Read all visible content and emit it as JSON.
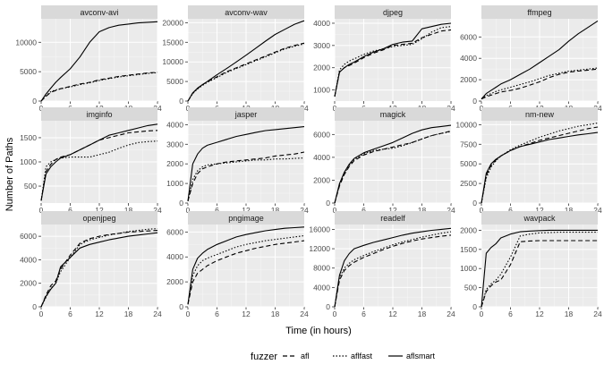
{
  "chart_data": {
    "type": "line",
    "xlabel": "Time (in hours)",
    "ylabel": "Number of Paths",
    "xlim": [
      0,
      24
    ],
    "xticks": [
      0,
      6,
      12,
      18,
      24
    ],
    "x": [
      0,
      1,
      2,
      3,
      4,
      6,
      8,
      10,
      12,
      14,
      16,
      18,
      20,
      22,
      24
    ],
    "grid": true,
    "legend": {
      "title": "fuzzer",
      "position": "bottom",
      "entries": [
        {
          "name": "afl",
          "dash": "5,3"
        },
        {
          "name": "aflfast",
          "dash": "1.5,2"
        },
        {
          "name": "aflsmart",
          "dash": ""
        }
      ]
    },
    "panels": [
      {
        "title": "avconv-avi",
        "ylim": [
          0,
          14000
        ],
        "yticks": [
          0,
          5000,
          10000
        ],
        "series": [
          {
            "name": "afl",
            "values": [
              0,
              800,
              1500,
              1800,
              2100,
              2500,
              2900,
              3200,
              3600,
              3900,
              4200,
              4400,
              4600,
              4800,
              4900
            ]
          },
          {
            "name": "aflfast",
            "values": [
              0,
              900,
              1600,
              1900,
              2100,
              2400,
              2800,
              3100,
              3500,
              3800,
              4100,
              4300,
              4500,
              4700,
              4850
            ]
          },
          {
            "name": "aflsmart",
            "values": [
              0,
              1200,
              2200,
              3200,
              4000,
              5500,
              7500,
              10000,
              11800,
              12500,
              12900,
              13100,
              13300,
              13400,
              13500
            ]
          }
        ]
      },
      {
        "title": "avconv-wav",
        "ylim": [
          0,
          21000
        ],
        "yticks": [
          0,
          5000,
          10000,
          15000,
          20000
        ],
        "series": [
          {
            "name": "afl",
            "values": [
              0,
              2000,
              3200,
              4200,
              4900,
              6200,
              7500,
              8500,
              9500,
              10500,
              11500,
              12500,
              13500,
              14200,
              14800
            ]
          },
          {
            "name": "aflfast",
            "values": [
              0,
              1900,
              3100,
              4000,
              4800,
              6000,
              7300,
              8300,
              9300,
              10300,
              11300,
              12300,
              13300,
              14000,
              14600
            ]
          },
          {
            "name": "aflsmart",
            "values": [
              0,
              2100,
              3300,
              4200,
              5000,
              6700,
              8300,
              10000,
              11700,
              13500,
              15300,
              17000,
              18300,
              19600,
              20500
            ]
          }
        ]
      },
      {
        "title": "djpeg",
        "ylim": [
          500,
          4200
        ],
        "yticks": [
          1000,
          2000,
          3000,
          4000
        ],
        "series": [
          {
            "name": "afl",
            "values": [
              700,
              1800,
              2000,
              2100,
              2200,
              2450,
              2650,
              2800,
              3000,
              3050,
              3100,
              3350,
              3500,
              3650,
              3700
            ]
          },
          {
            "name": "aflfast",
            "values": [
              700,
              1900,
              2150,
              2300,
              2400,
              2600,
              2750,
              2850,
              2950,
              3000,
              3050,
              3300,
              3600,
              3800,
              3850
            ]
          },
          {
            "name": "aflsmart",
            "values": [
              700,
              1800,
              2000,
              2150,
              2250,
              2500,
              2700,
              2850,
              3050,
              3150,
              3200,
              3750,
              3850,
              3950,
              4000
            ]
          }
        ]
      },
      {
        "title": "ffmpeg",
        "ylim": [
          0,
          7700
        ],
        "yticks": [
          0,
          2000,
          4000,
          6000
        ],
        "series": [
          {
            "name": "afl",
            "values": [
              200,
              400,
              550,
              700,
              850,
              1000,
              1200,
              1500,
              1800,
              2200,
              2500,
              2700,
              2800,
              2900,
              3000
            ]
          },
          {
            "name": "aflfast",
            "values": [
              200,
              500,
              700,
              900,
              1050,
              1300,
              1550,
              1800,
              2100,
              2400,
              2600,
              2800,
              2900,
              3000,
              3100
            ]
          },
          {
            "name": "aflsmart",
            "values": [
              200,
              700,
              1000,
              1300,
              1600,
              2000,
              2500,
              3000,
              3600,
              4200,
              4800,
              5600,
              6300,
              6900,
              7500
            ]
          }
        ]
      },
      {
        "title": "imginfo",
        "ylim": [
          150,
          1850
        ],
        "yticks": [
          500,
          1000,
          1500
        ],
        "series": [
          {
            "name": "afl",
            "values": [
              200,
              800,
              950,
              1050,
              1100,
              1150,
              1250,
              1350,
              1450,
              1500,
              1550,
              1600,
              1620,
              1640,
              1650
            ]
          },
          {
            "name": "aflfast",
            "values": [
              200,
              900,
              1000,
              1050,
              1080,
              1100,
              1100,
              1100,
              1150,
              1200,
              1280,
              1350,
              1400,
              1420,
              1430
            ]
          },
          {
            "name": "aflsmart",
            "values": [
              200,
              750,
              900,
              1000,
              1080,
              1150,
              1250,
              1350,
              1450,
              1550,
              1600,
              1650,
              1700,
              1750,
              1780
            ]
          }
        ]
      },
      {
        "title": "jasper",
        "ylim": [
          0,
          4200
        ],
        "yticks": [
          0,
          1000,
          2000,
          3000,
          4000
        ],
        "series": [
          {
            "name": "afl",
            "values": [
              100,
              1000,
              1500,
              1750,
              1850,
              2000,
              2100,
              2150,
              2200,
              2250,
              2300,
              2400,
              2450,
              2500,
              2600
            ]
          },
          {
            "name": "aflfast",
            "values": [
              100,
              1200,
              1650,
              1850,
              1950,
              2000,
              2050,
              2100,
              2150,
              2200,
              2200,
              2250,
              2250,
              2280,
              2300
            ]
          },
          {
            "name": "aflsmart",
            "values": [
              100,
              2000,
              2500,
              2800,
              2950,
              3100,
              3250,
              3400,
              3500,
              3600,
              3700,
              3750,
              3800,
              3850,
              3900
            ]
          }
        ]
      },
      {
        "title": "magick",
        "ylim": [
          0,
          7200
        ],
        "yticks": [
          0,
          2000,
          4000,
          6000
        ],
        "series": [
          {
            "name": "afl",
            "values": [
              0,
              1500,
              2500,
              3200,
              3700,
              4200,
              4500,
              4700,
              4900,
              5100,
              5300,
              5600,
              5900,
              6100,
              6300
            ]
          },
          {
            "name": "aflfast",
            "values": [
              0,
              1600,
              2600,
              3300,
              3800,
              4300,
              4600,
              4700,
              4800,
              5000,
              5300,
              5600,
              5900,
              6100,
              6250
            ]
          },
          {
            "name": "aflsmart",
            "values": [
              0,
              1700,
              2700,
              3400,
              3900,
              4400,
              4700,
              5000,
              5300,
              5700,
              6100,
              6400,
              6600,
              6700,
              6800
            ]
          }
        ]
      },
      {
        "title": "nm-new",
        "ylim": [
          0,
          10500
        ],
        "yticks": [
          0,
          2500,
          5000,
          7500,
          10000
        ],
        "series": [
          {
            "name": "afl",
            "values": [
              0,
              3500,
              4800,
              5500,
              6000,
              6700,
              7200,
              7600,
              8000,
              8300,
              8600,
              8900,
              9200,
              9500,
              9700
            ]
          },
          {
            "name": "aflfast",
            "values": [
              0,
              3200,
              4600,
              5400,
              6000,
              6800,
              7400,
              7900,
              8400,
              8800,
              9200,
              9500,
              9800,
              10000,
              10200
            ]
          },
          {
            "name": "aflsmart",
            "values": [
              0,
              3800,
              5000,
              5600,
              6000,
              6700,
              7200,
              7500,
              7800,
              8100,
              8300,
              8500,
              8700,
              8850,
              9000
            ]
          }
        ]
      },
      {
        "title": "openjpeg",
        "ylim": [
          0,
          7000
        ],
        "yticks": [
          0,
          2000,
          4000,
          6000
        ],
        "series": [
          {
            "name": "afl",
            "values": [
              0,
              1000,
              1800,
              2200,
              3200,
              4400,
              5400,
              5800,
              6000,
              6150,
              6250,
              6350,
              6400,
              6450,
              6500
            ]
          },
          {
            "name": "aflfast",
            "values": [
              0,
              800,
              1600,
              2000,
              3000,
              4200,
              5300,
              5700,
              5900,
              6100,
              6250,
              6400,
              6500,
              6600,
              6650
            ]
          },
          {
            "name": "aflsmart",
            "values": [
              0,
              900,
              1500,
              2000,
              3400,
              4200,
              5000,
              5300,
              5500,
              5700,
              5850,
              6000,
              6100,
              6200,
              6300
            ]
          }
        ]
      },
      {
        "title": "pngimage",
        "ylim": [
          0,
          6600
        ],
        "yticks": [
          0,
          2000,
          4000,
          6000
        ],
        "series": [
          {
            "name": "afl",
            "values": [
              200,
              2000,
              2700,
              3000,
              3300,
              3700,
              4000,
              4300,
              4500,
              4700,
              4850,
              5000,
              5100,
              5200,
              5300
            ]
          },
          {
            "name": "aflfast",
            "values": [
              200,
              2500,
              3300,
              3700,
              3900,
              4200,
              4500,
              4800,
              5000,
              5150,
              5300,
              5400,
              5500,
              5600,
              5700
            ]
          },
          {
            "name": "aflsmart",
            "values": [
              200,
              3000,
              3900,
              4300,
              4600,
              5000,
              5300,
              5600,
              5800,
              5950,
              6100,
              6200,
              6300,
              6350,
              6400
            ]
          }
        ]
      },
      {
        "title": "readelf",
        "ylim": [
          0,
          17000
        ],
        "yticks": [
          0,
          4000,
          8000,
          12000,
          16000
        ],
        "series": [
          {
            "name": "afl",
            "values": [
              0,
              5500,
              7500,
              8500,
              9200,
              10200,
              11000,
              11800,
              12500,
              13100,
              13600,
              14000,
              14300,
              14600,
              14800
            ]
          },
          {
            "name": "aflfast",
            "values": [
              0,
              6000,
              8000,
              9000,
              9700,
              10600,
              11400,
              12100,
              12800,
              13400,
              13900,
              14400,
              14800,
              15200,
              15500
            ]
          },
          {
            "name": "aflsmart",
            "values": [
              0,
              6500,
              9500,
              11000,
              12000,
              12700,
              13300,
              13800,
              14300,
              14800,
              15200,
              15500,
              15800,
              16000,
              16200
            ]
          }
        ]
      },
      {
        "title": "wavpack",
        "ylim": [
          0,
          2150
        ],
        "yticks": [
          0,
          500,
          1000,
          1500,
          2000
        ],
        "series": [
          {
            "name": "afl",
            "values": [
              0,
              400,
              550,
              650,
              700,
              1100,
              1700,
              1720,
              1730,
              1730,
              1730,
              1730,
              1730,
              1730,
              1730
            ]
          },
          {
            "name": "aflfast",
            "values": [
              0,
              450,
              600,
              700,
              850,
              1300,
              1850,
              1900,
              1930,
              1940,
              1950,
              1950,
              1950,
              1950,
              1950
            ]
          },
          {
            "name": "aflsmart",
            "values": [
              0,
              1400,
              1550,
              1650,
              1800,
              1900,
              1960,
              1980,
              1990,
              2000,
              2000,
              2000,
              2000,
              2000,
              2000
            ]
          }
        ]
      }
    ]
  }
}
